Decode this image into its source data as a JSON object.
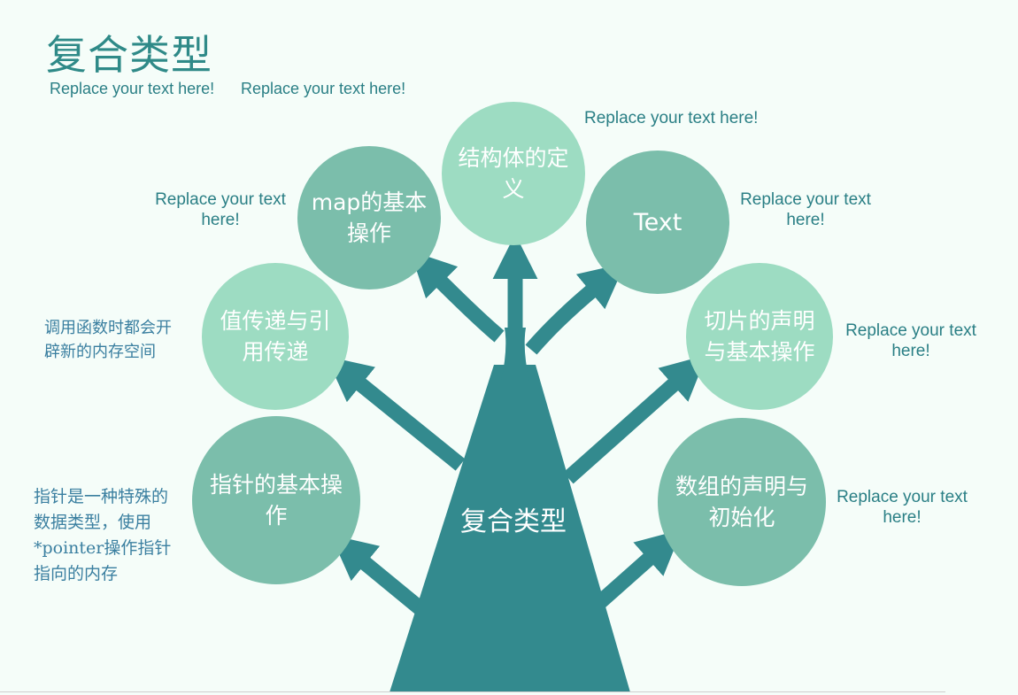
{
  "title": "复合类型",
  "subtitles": [
    "Replace your text here!",
    "Replace your text here!"
  ],
  "center": {
    "label": "复合类型"
  },
  "nodes": [
    {
      "id": "pointer",
      "label": "指针的基本操作"
    },
    {
      "id": "value-ref",
      "label": "值传递与引用传递"
    },
    {
      "id": "map",
      "label": "map的基本操作"
    },
    {
      "id": "struct",
      "label": "结构体的定义"
    },
    {
      "id": "text",
      "label": "Text"
    },
    {
      "id": "slice",
      "label": "切片的声明与基本操作"
    },
    {
      "id": "array",
      "label": "数组的声明与初始化"
    }
  ],
  "captions": {
    "struct": "Replace your text here!",
    "map": "Replace your text here!",
    "text": "Replace your text here!",
    "slice": "Replace your text here!",
    "array": "Replace your text here!"
  },
  "notes": {
    "value_ref": "调用函数时都会开辟新的内存空间",
    "pointer": "指针是一种特殊的数据类型，使用*pointer操作指针指向的内存"
  },
  "colors": {
    "trunk": "#338a8e",
    "node_light": "#9ddcc2",
    "node_mid": "#7bbeab",
    "title": "#2f8a88",
    "caption": "#2a7f85",
    "note": "#3a7fa0"
  }
}
